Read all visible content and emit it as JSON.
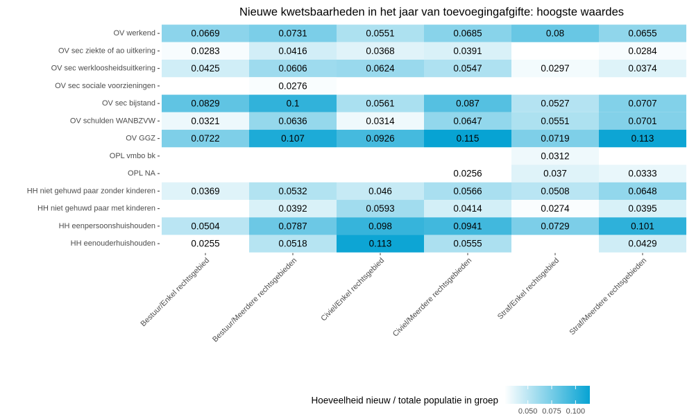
{
  "chart_data": {
    "type": "heatmap",
    "title": "Nieuwe kwetsbaarheden in het jaar van toevoegingafgifte: hoogste waardes",
    "x_categories": [
      "Bestuur/Enkel rechtsgebied",
      "Bestuur/Meerdere rechtsgebieden",
      "Civiel/Enkel rechtsgebied",
      "Civiel/Meerdere rechtsgebieden",
      "Straf/Enkel rechtsgebied",
      "Straf/Meerdere rechtsgebieden"
    ],
    "y_categories": [
      "OV werkend",
      "OV sec ziekte of ao uitkering",
      "OV sec werkloosheidsuitkering",
      "OV sec sociale voorzieningen",
      "OV sec bijstand",
      "OV schulden WANBZVW",
      "OV GGZ",
      "OPL vmbo bk",
      "OPL NA",
      "HH niet gehuwd paar zonder kinderen",
      "HH niet gehuwd paar met kinderen",
      "HH eenpersoonshuishouden",
      "HH eenouderhuishouden"
    ],
    "values": [
      [
        0.0669,
        0.0731,
        0.0551,
        0.0685,
        0.08,
        0.0655
      ],
      [
        0.0283,
        0.0416,
        0.0368,
        0.0391,
        null,
        0.0284
      ],
      [
        0.0425,
        0.0606,
        0.0624,
        0.0547,
        0.0297,
        0.0374
      ],
      [
        null,
        0.0276,
        null,
        null,
        null,
        null
      ],
      [
        0.0829,
        0.1,
        0.0561,
        0.087,
        0.0527,
        0.0707
      ],
      [
        0.0321,
        0.0636,
        0.0314,
        0.0647,
        0.0551,
        0.0701
      ],
      [
        0.0722,
        0.107,
        0.0926,
        0.115,
        0.0719,
        0.113
      ],
      [
        null,
        null,
        null,
        null,
        0.0312,
        null
      ],
      [
        null,
        null,
        null,
        0.0256,
        0.037,
        0.0333
      ],
      [
        0.0369,
        0.0532,
        0.046,
        0.0566,
        0.0508,
        0.0648
      ],
      [
        null,
        0.0392,
        0.0593,
        0.0414,
        0.0274,
        0.0395
      ],
      [
        0.0504,
        0.0787,
        0.098,
        0.0941,
        0.0729,
        0.101
      ],
      [
        0.0255,
        0.0518,
        0.113,
        0.0555,
        null,
        0.0429
      ]
    ],
    "colorbar": {
      "title": "Hoeveelheid nieuw / totale populatie in groep",
      "lim": [
        0.0255,
        0.115
      ],
      "ticks": [
        {
          "value": 0.05,
          "label": "0.050"
        },
        {
          "value": 0.075,
          "label": "0.075"
        },
        {
          "value": 0.1,
          "label": "0.100"
        }
      ],
      "low_color": "#ffffff",
      "high_color": "#07a3d3"
    }
  }
}
